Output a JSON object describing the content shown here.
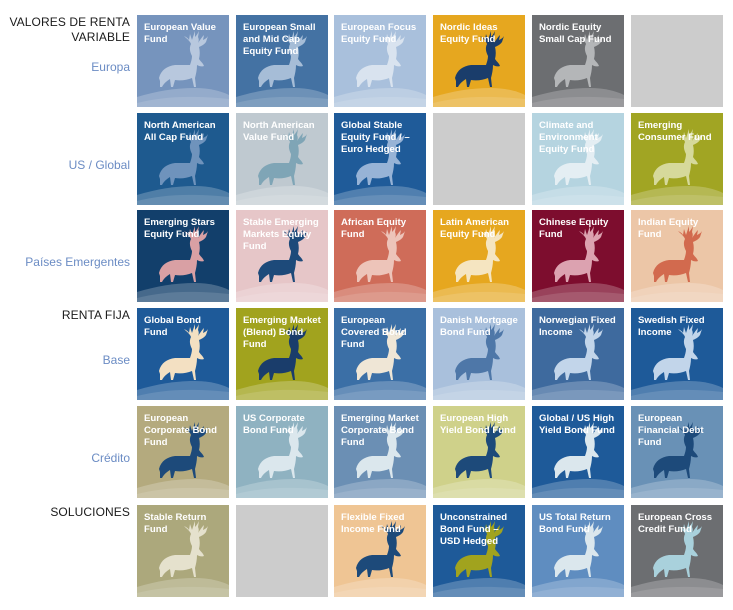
{
  "rows": [
    {
      "section": "VALORES DE RENTA VARIABLE",
      "sub": "Europa",
      "tiles": [
        {
          "name": "European Value Fund",
          "bg": "#7694bd",
          "deer": "#b8c8de"
        },
        {
          "name": "European Small and Mid Cap Equity Fund",
          "bg": "#4472a3",
          "deer": "#a6bdd7"
        },
        {
          "name": "European Focus Equity Fund",
          "bg": "#a9c0dc",
          "deer": "#d9e3ef"
        },
        {
          "name": "Nordic Ideas Equity Fund",
          "bg": "#e6a71f",
          "deer": "#1a3d6b"
        },
        {
          "name": "Nordic Equity Small Cap Fund",
          "bg": "#6c6e71",
          "deer": "#b4b6b8"
        },
        null
      ]
    },
    {
      "section": "",
      "sub": "US / Global",
      "tiles": [
        {
          "name": "North American All Cap Fund",
          "bg": "#1e5a8f",
          "deer": "#6f93bc"
        },
        {
          "name": "North American Value Fund",
          "bg": "#bfc9d0",
          "deer": "#7fa5b6"
        },
        {
          "name": "Global Stable Equity Fund / – Euro Hedged",
          "bg": "#1f5b99",
          "deer": "#97b3d6"
        },
        null,
        {
          "name": "Climate and Environment Equity Fund",
          "bg": "#b5d4e0",
          "deer": "#e4eef3"
        },
        {
          "name": "Emerging Consumer Fund",
          "bg": "#a1a523",
          "deer": "#d6d99b"
        }
      ]
    },
    {
      "section": "",
      "sub": "Países Emergentes",
      "tiles": [
        {
          "name": "Emerging Stars Equity Fund",
          "bg": "#123f6b",
          "deer": "#d9a0a4"
        },
        {
          "name": "Stable Emerging Markets Equity Fund",
          "bg": "#e6c6c8",
          "deer": "#1d4a7a"
        },
        {
          "name": "African Equity Fund",
          "bg": "#cf6c59",
          "deer": "#edc4b9"
        },
        {
          "name": "Latin American Equity Fund",
          "bg": "#e6a71f",
          "deer": "#f5e5c1"
        },
        {
          "name": "Chinese Equity Fund",
          "bg": "#7d0d2e",
          "deer": "#dca2b0"
        },
        {
          "name": "Indian Equity Fund",
          "bg": "#ecc6a7",
          "deer": "#d26a4e"
        }
      ]
    },
    {
      "section": "RENTA FIJA",
      "sub": "Base",
      "tiles": [
        {
          "name": "Global Bond Fund",
          "bg": "#1e5a99",
          "deer": "#f3e0c2"
        },
        {
          "name": "Emerging Market (Blend) Bond Fund",
          "bg": "#a1a31e",
          "deer": "#1a3d6b"
        },
        {
          "name": "European Covered Bond Fund",
          "bg": "#3b6fa6",
          "deer": "#efe6d6"
        },
        {
          "name": "Danish Mortgage Bond Fund",
          "bg": "#a9c0dc",
          "deer": "#4e77a8"
        },
        {
          "name": "Norwegian Fixed Income",
          "bg": "#3e6a9e",
          "deer": "#c2d5ea"
        },
        {
          "name": "Swedish Fixed Income",
          "bg": "#1e5a99",
          "deer": "#c2d5ea"
        }
      ]
    },
    {
      "section": "",
      "sub": "Crédito",
      "tiles": [
        {
          "name": "European Corporate Bond Fund",
          "bg": "#b4aa7e",
          "deer": "#1d4a7a"
        },
        {
          "name": "US Corporate Bond Fund",
          "bg": "#8fb2c1",
          "deer": "#dbe7ed"
        },
        {
          "name": "Emerging Market Corporate Bond Fund",
          "bg": "#6b8fb4",
          "deer": "#dbe7ed"
        },
        {
          "name": "European High Yield Bond Fund",
          "bg": "#cfd18a",
          "deer": "#1d4a7a"
        },
        {
          "name": "Global / US High Yield Bond Fund",
          "bg": "#1e5a99",
          "deer": "#dbe7ed"
        },
        {
          "name": "European Financial Debt Fund",
          "bg": "#6991b6",
          "deer": "#1d4a7a"
        }
      ]
    },
    {
      "section": "SOLUCIONES",
      "sub": "",
      "tiles": [
        {
          "name": "Stable Return Fund",
          "bg": "#aca87c",
          "deer": "#e5e1cd"
        },
        null,
        {
          "name": "Flexible Fixed Income Fund",
          "bg": "#efc594",
          "deer": "#1d4a7a"
        },
        {
          "name": "Unconstrained Bond Fund – USD Hedged",
          "bg": "#1e5a99",
          "deer": "#a1a31e"
        },
        {
          "name": "US Total Return Bond Fund",
          "bg": "#5f8dc0",
          "deer": "#dbe7ed"
        },
        {
          "name": "European Cross Credit Fund",
          "bg": "#6c6e71",
          "deer": "#a9d1dc"
        }
      ]
    }
  ]
}
